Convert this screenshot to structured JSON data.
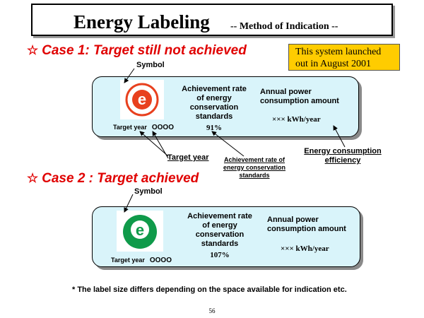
{
  "header": {
    "title": "Energy Labeling",
    "subtitle": "-- Method of Indication --"
  },
  "notice": {
    "line1": "This system launched",
    "line2": "out in August 2001",
    "color": "#ffcc00"
  },
  "case1": {
    "heading": "Case 1: Target still not achieved",
    "symbol_label": "Symbol",
    "logo_color": "#e8401e",
    "logo_letter": "e",
    "target_year_label": "Target year",
    "target_year_value": "OOOO",
    "rate_lines": [
      "Achievement rate",
      "of energy",
      "conservation",
      "standards"
    ],
    "rate_value": "91%",
    "annual_lines": [
      "Annual power",
      "consumption amount"
    ],
    "kwh": "××× kWh/year",
    "callout_target_year": "Target year",
    "callout_rate_lines": [
      "Achievement rate of",
      "energy conservation",
      "standards"
    ],
    "callout_efficiency_lines": [
      "Energy consumption",
      "efficiency"
    ]
  },
  "case2": {
    "heading": "Case 2 : Target achieved",
    "symbol_label": "Symbol",
    "logo_color": "#0f9a4a",
    "logo_letter": "e",
    "target_year_label": "Target year",
    "target_year_value": "OOOO",
    "rate_lines": [
      "Achievement rate",
      "of energy",
      "conservation",
      "standards"
    ],
    "rate_value": "107%",
    "annual_lines": [
      "Annual power",
      "consumption amount"
    ],
    "kwh": "××× kWh/year"
  },
  "footnote": "* The label size differs depending on the space available for indication etc.",
  "page_number": "56",
  "colors": {
    "heading_red": "#e00000",
    "label_fill": "#d9f4fa"
  }
}
